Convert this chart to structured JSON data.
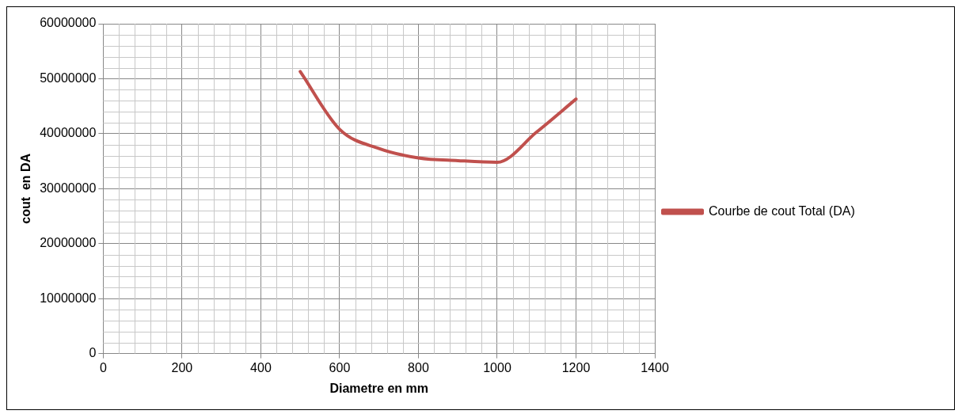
{
  "chart_data": {
    "type": "line",
    "xlabel": "Diametre en mm",
    "ylabel": "cout  en DA",
    "x": [
      500,
      600,
      700,
      800,
      900,
      1000,
      1100,
      1200
    ],
    "series": [
      {
        "name": "Courbe de cout Total (DA)",
        "color": "#c0504d",
        "values": [
          51300000,
          40800000,
          37300000,
          35600000,
          35100000,
          34800000,
          40300000,
          46300000
        ]
      }
    ],
    "xlim": [
      0,
      1400
    ],
    "xticks": [
      0,
      200,
      400,
      600,
      800,
      1000,
      1200,
      1400
    ],
    "ylim": [
      0,
      60000000
    ],
    "yticks": [
      0,
      10000000,
      20000000,
      30000000,
      40000000,
      50000000,
      60000000
    ],
    "grid": true,
    "legend": "right",
    "marker": "none",
    "line_style": "solid"
  }
}
